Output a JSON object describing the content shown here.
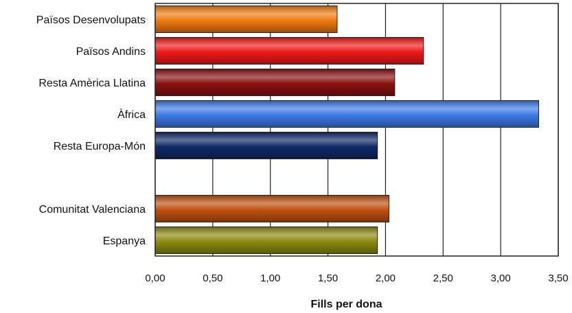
{
  "chart_data": {
    "type": "bar",
    "orientation": "horizontal",
    "xlabel": "Fills per dona",
    "xlim": [
      0,
      3.5
    ],
    "xticks": [
      0,
      0.5,
      1.0,
      1.5,
      2.0,
      2.5,
      3.0,
      3.5
    ],
    "xtick_labels": [
      "0,00",
      "0,50",
      "1,00",
      "1,50",
      "2,00",
      "2,50",
      "3,00",
      "3,50"
    ],
    "grid": true,
    "categories": [
      "Països Desenvolupats",
      "Països Andins",
      "Resta Amèrica Llatina",
      "Àfrica",
      "Resta Europa-Món",
      "",
      "Comunitat Valenciana",
      "Espanya"
    ],
    "values": [
      1.58,
      2.33,
      2.08,
      3.33,
      1.93,
      null,
      2.03,
      1.93
    ],
    "colors": [
      "#f07a10",
      "#f01818",
      "#8a1010",
      "#3a7ae8",
      "#0e2a66",
      null,
      "#c05010",
      "#8a8a10"
    ]
  }
}
